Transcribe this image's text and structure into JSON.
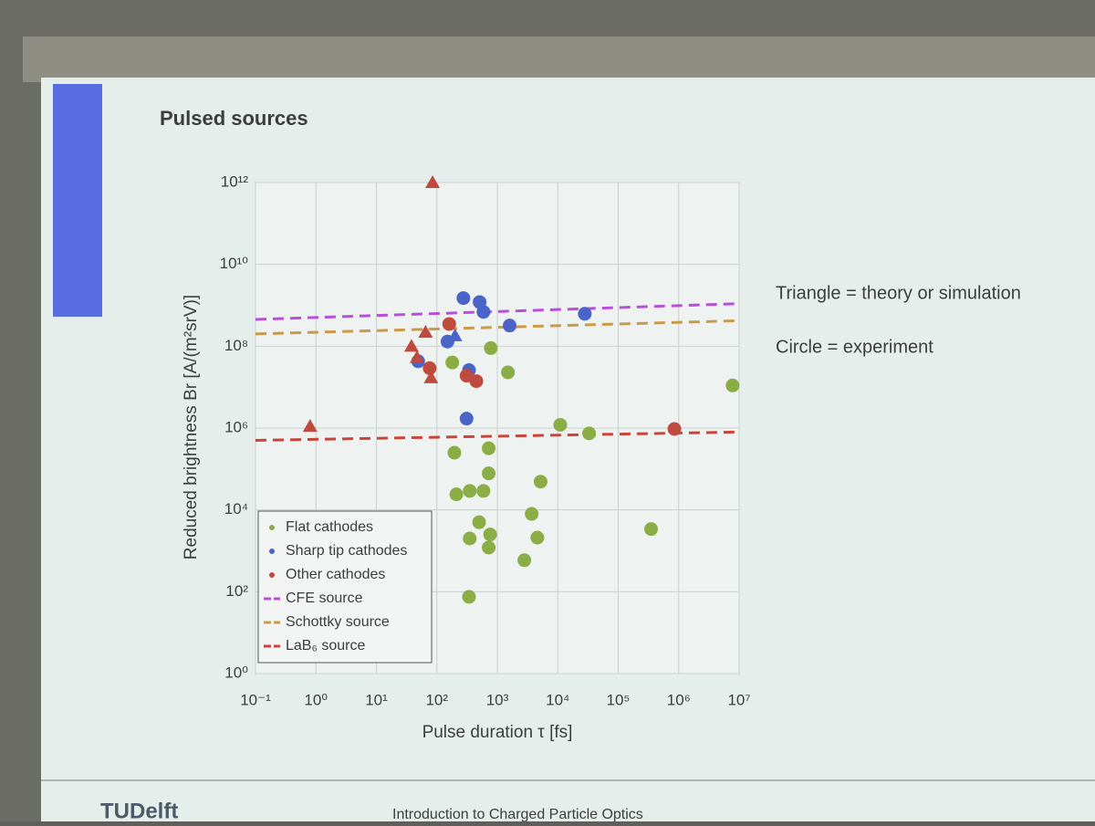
{
  "chart_data": {
    "type": "scatter",
    "title": "Pulsed sources",
    "x_label": "Pulse duration τ [fs]",
    "y_label": "Reduced brightness Br [A/(m²srV)]",
    "xscale": "log",
    "yscale": "log",
    "xlim": [
      0.1,
      10000000
    ],
    "ylim": [
      1,
      1000000000000
    ],
    "xticks": [
      {
        "value": 0.1,
        "label": "10⁻¹"
      },
      {
        "value": 1,
        "label": "10⁰"
      },
      {
        "value": 10,
        "label": "10¹"
      },
      {
        "value": 100,
        "label": "10²"
      },
      {
        "value": 1000,
        "label": "10³"
      },
      {
        "value": 10000,
        "label": "10⁴"
      },
      {
        "value": 100000,
        "label": "10⁵"
      },
      {
        "value": 1000000,
        "label": "10⁶"
      },
      {
        "value": 10000000,
        "label": "10⁷"
      }
    ],
    "yticks": [
      {
        "value": 1,
        "label": "10⁰"
      },
      {
        "value": 100,
        "label": "10²"
      },
      {
        "value": 10000,
        "label": "10⁴"
      },
      {
        "value": 1000000,
        "label": "10⁶"
      },
      {
        "value": 100000000,
        "label": "10⁸"
      },
      {
        "value": 10000000000,
        "label": "10¹⁰"
      },
      {
        "value": 1000000000000,
        "label": "10¹²"
      }
    ],
    "grid": true,
    "legend": "lower left",
    "series": [
      {
        "name": "Flat cathodes",
        "color": "#8aad45",
        "kind": "points",
        "x": [
          7800000,
          780,
          1500,
          180,
          11000,
          33000,
          195,
          720,
          720,
          5200,
          210,
          350,
          590,
          3700,
          500,
          760,
          4600,
          350,
          720,
          2800,
          350000,
          340
        ],
        "values": [
          11000000,
          90000000,
          23000000,
          40000000,
          1200000,
          740000,
          250000,
          320000,
          78000,
          49000,
          24000,
          29000,
          29000,
          8000,
          5000,
          2500,
          2100,
          2000,
          1200,
          590,
          3400,
          75
        ],
        "markers": [
          "circle",
          "circle",
          "circle",
          "circle",
          "circle",
          "circle",
          "circle",
          "circle",
          "circle",
          "circle",
          "circle",
          "circle",
          "circle",
          "circle",
          "circle",
          "circle",
          "circle",
          "circle",
          "circle",
          "circle",
          "circle",
          "circle"
        ]
      },
      {
        "name": "Sharp tip cathodes",
        "color": "#4a64c8",
        "kind": "points",
        "x": [
          275,
          510,
          590,
          1600,
          28000,
          150,
          340,
          49,
          310,
          200
        ],
        "values": [
          1500000000,
          1200000000,
          690000000,
          320000000,
          620000000,
          130000000,
          26000000,
          43000000,
          1700000,
          180000000
        ],
        "markers": [
          "circle",
          "circle",
          "circle",
          "circle",
          "circle",
          "circle",
          "circle",
          "circle",
          "circle",
          "triangle"
        ]
      },
      {
        "name": "Other cathodes",
        "color": "#bf4a3e",
        "kind": "points",
        "x": [
          85,
          0.8,
          65,
          38,
          47,
          80,
          160,
          76,
          310,
          450,
          850000
        ],
        "values": [
          1000000000000,
          1100000,
          220000000,
          100000000,
          53000000,
          17000000,
          350000000,
          29000000,
          19000000,
          14000000,
          950000
        ],
        "markers": [
          "triangle",
          "triangle",
          "triangle",
          "triangle",
          "triangle",
          "triangle",
          "circle",
          "circle",
          "circle",
          "circle",
          "circle"
        ]
      },
      {
        "name": "CFE source",
        "color": "#b84fd8",
        "kind": "dashed-line",
        "x": [
          0.1,
          10000000
        ],
        "values": [
          450000000,
          1100000000
        ]
      },
      {
        "name": "Schottky source",
        "color": "#c99a4a",
        "kind": "dashed-line",
        "x": [
          0.1,
          10000000
        ],
        "values": [
          200000000,
          420000000
        ]
      },
      {
        "name": "LaB₆ source",
        "color": "#c9453c",
        "kind": "dashed-line",
        "x": [
          0.1,
          10000000
        ],
        "values": [
          500000,
          800000
        ]
      }
    ],
    "annotations": [
      "Triangle =  theory or simulation",
      "Circle = experiment"
    ]
  },
  "footer": {
    "logo": "TUDelft",
    "text": "Introduction to Charged Particle Optics"
  }
}
